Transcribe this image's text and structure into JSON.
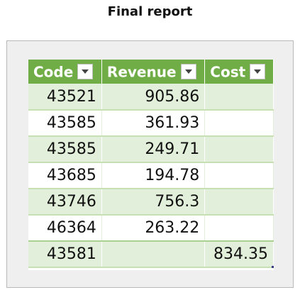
{
  "page": {
    "title": "Final report"
  },
  "table": {
    "columns": [
      "Code",
      "Revenue",
      "Cost"
    ],
    "rows": [
      {
        "code": "43521",
        "revenue": "905.86",
        "cost": ""
      },
      {
        "code": "43585",
        "revenue": "361.93",
        "cost": ""
      },
      {
        "code": "43585",
        "revenue": "249.71",
        "cost": ""
      },
      {
        "code": "43685",
        "revenue": "194.78",
        "cost": ""
      },
      {
        "code": "43746",
        "revenue": "756.3",
        "cost": ""
      },
      {
        "code": "46364",
        "revenue": "263.22",
        "cost": ""
      },
      {
        "code": "43581",
        "revenue": "",
        "cost": "834.35"
      }
    ]
  },
  "colors": {
    "header": "#70ad47",
    "band": "#e2efda",
    "frame": "#efefef"
  }
}
